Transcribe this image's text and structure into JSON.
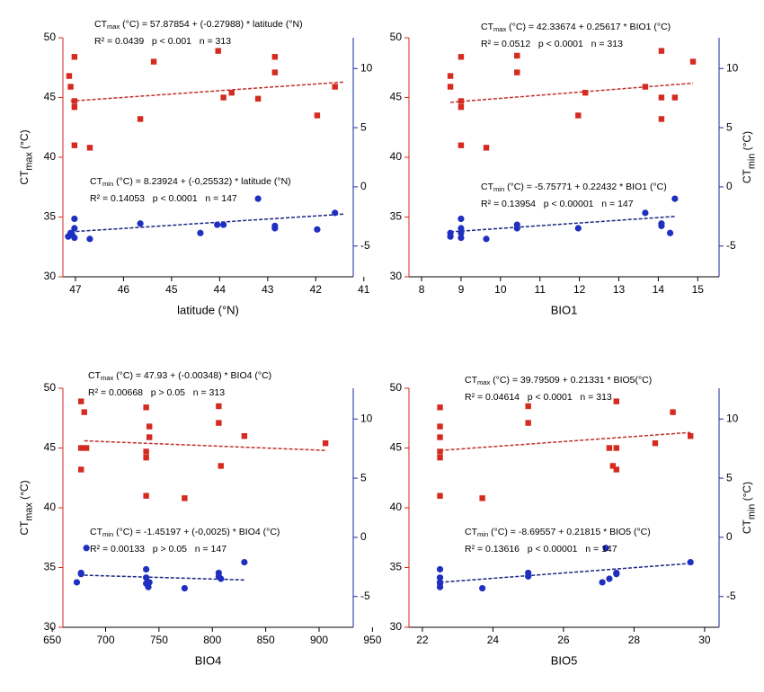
{
  "chart_data": [
    {
      "type": "scatter",
      "xlabel": "latitude (°N)",
      "ylabel": {
        "prefix": "CT",
        "sub": "max",
        "text": " (°C)"
      },
      "xlim": [
        47.26,
        41.22
      ],
      "xticks": [
        47,
        46,
        45,
        44,
        43,
        42,
        41
      ],
      "ylim": [
        30,
        50
      ],
      "yticks": [
        30,
        35,
        40,
        45,
        50
      ],
      "y2lim": [
        -7.6,
        12.6
      ],
      "y2ticks": [
        -5,
        0,
        5,
        10
      ],
      "series": [
        {
          "color": "#d42a1f",
          "marker": "square",
          "x": [
            47.13,
            47.1,
            47.02,
            47.02,
            47.02,
            47.02,
            46.7,
            45.65,
            45.37,
            44.03,
            43.92,
            43.75,
            43.2,
            42.85,
            42.85,
            41.97,
            41.6
          ],
          "values": [
            46.8,
            45.9,
            48.4,
            44.7,
            44.2,
            41.0,
            40.8,
            43.2,
            48.0,
            48.9,
            45.0,
            45.4,
            44.9,
            48.4,
            47.1,
            43.5,
            45.9
          ]
        },
        {
          "color": "#1f2fc0",
          "marker": "circle",
          "axis": "y2",
          "x": [
            47.15,
            47.1,
            47.07,
            47.02,
            47.02,
            47.02,
            46.7,
            45.65,
            44.4,
            44.05,
            43.92,
            43.2,
            42.85,
            42.85,
            41.97,
            41.6
          ],
          "values": [
            -4.2,
            -3.9,
            -4.0,
            -2.7,
            -3.5,
            -4.3,
            -4.4,
            -3.1,
            -3.9,
            -3.2,
            -3.2,
            -1.0,
            -3.3,
            -3.5,
            -3.6,
            -2.2
          ]
        }
      ],
      "fits": [
        {
          "color": "#c0302a",
          "x": [
            47.1,
            41.4
          ],
          "values": [
            44.7,
            46.3
          ]
        },
        {
          "color": "#1a2580",
          "axis": "y2",
          "x": [
            47.1,
            41.4
          ],
          "values": [
            -3.8,
            -2.3
          ]
        }
      ],
      "annotations": [
        {
          "prefix": "CT",
          "sub": "max",
          "text": " (°C) = 57.87854 + (-0.27988) * latitude (°N)",
          "stats": "R² = 0.0439   p < 0.001   n = 313"
        },
        {
          "prefix": "CT",
          "sub": "min",
          "text": " (°C) = 8.23924 + (-0,25532) * latitude (°N)",
          "stats": "R² = 0.14053   p < 0.0001   n = 147"
        }
      ]
    },
    {
      "type": "scatter",
      "xlabel": "BIO1",
      "y2label": {
        "prefix": "CT",
        "sub": "min",
        "text": " (°C)"
      },
      "xlim": [
        7.68,
        15.54
      ],
      "xticks": [
        8,
        9,
        10,
        11,
        12,
        13,
        14,
        15
      ],
      "ylim": [
        30,
        50
      ],
      "yticks": [
        30,
        35,
        40,
        45,
        50
      ],
      "y2lim": [
        -7.6,
        12.6
      ],
      "y2ticks": [
        -5,
        0,
        5,
        10
      ],
      "series": [
        {
          "color": "#d42a1f",
          "marker": "square",
          "x": [
            8.73,
            8.73,
            9.0,
            9.0,
            9.0,
            9.0,
            9.64,
            10.42,
            10.42,
            11.97,
            12.15,
            13.67,
            14.08,
            14.08,
            14.08,
            14.42,
            14.88
          ],
          "values": [
            46.8,
            45.9,
            48.4,
            44.7,
            44.2,
            41.0,
            40.8,
            48.5,
            47.1,
            43.5,
            45.4,
            45.9,
            48.9,
            45.0,
            43.2,
            45.0,
            48.0
          ]
        },
        {
          "color": "#1f2fc0",
          "marker": "circle",
          "axis": "y2",
          "x": [
            8.73,
            8.73,
            9.0,
            9.0,
            9.0,
            9.0,
            9.64,
            10.42,
            10.42,
            11.97,
            13.67,
            14.08,
            14.08,
            14.3,
            14.42
          ],
          "values": [
            -4.2,
            -3.9,
            -2.7,
            -3.5,
            -3.9,
            -4.3,
            -4.4,
            -3.2,
            -3.5,
            -3.5,
            -2.2,
            -3.1,
            -3.3,
            -3.9,
            -1.0
          ]
        }
      ],
      "fits": [
        {
          "color": "#c0302a",
          "x": [
            8.73,
            14.88
          ],
          "values": [
            44.6,
            46.2
          ]
        },
        {
          "color": "#1a2580",
          "axis": "y2",
          "x": [
            8.73,
            14.42
          ],
          "values": [
            -3.8,
            -2.5
          ]
        }
      ],
      "annotations": [
        {
          "prefix": "CT",
          "sub": "max",
          "text": " (°C) = 42.33674 + 0.25617 * BIO1 (°C)",
          "stats": "R² = 0.0512   p < 0.0001   n = 313"
        },
        {
          "prefix": "CT",
          "sub": "min",
          "text": " (°C) = -5.75771 + 0.22432 * BIO1 (°C)",
          "stats": "R² = 0.13954   p < 0.00001   n = 147"
        }
      ]
    },
    {
      "type": "scatter",
      "xlabel": "BIO4",
      "ylabel": {
        "prefix": "CT",
        "sub": "max",
        "text": " (°C)"
      },
      "xlim": [
        660,
        932
      ],
      "xticks": [
        650,
        700,
        750,
        800,
        850,
        900,
        950
      ],
      "ylim": [
        30,
        50
      ],
      "yticks": [
        30,
        35,
        40,
        45,
        50
      ],
      "y2lim": [
        -7.6,
        12.6
      ],
      "y2ticks": [
        -5,
        0,
        5,
        10
      ],
      "series": [
        {
          "color": "#d42a1f",
          "marker": "square",
          "x": [
            677,
            680,
            677,
            682,
            677,
            738,
            741,
            741,
            738,
            738,
            738,
            774,
            806,
            806,
            808,
            830,
            906
          ],
          "values": [
            48.9,
            48.0,
            45.0,
            45.0,
            43.2,
            48.4,
            46.8,
            45.9,
            44.7,
            44.2,
            41.0,
            40.8,
            48.5,
            47.1,
            43.5,
            46.0,
            45.4
          ]
        },
        {
          "color": "#1f2fc0",
          "marker": "circle",
          "axis": "y2",
          "x": [
            673,
            677,
            677,
            682,
            738,
            738,
            738,
            741,
            740,
            774,
            806,
            806,
            808,
            830
          ],
          "values": [
            -3.8,
            -3.0,
            -3.1,
            -0.9,
            -2.7,
            -3.4,
            -3.9,
            -3.8,
            -4.2,
            -4.3,
            -3.0,
            -3.3,
            -3.5,
            -2.1
          ]
        }
      ],
      "fits": [
        {
          "color": "#c0302a",
          "x": [
            680,
            906
          ],
          "values": [
            45.6,
            44.8
          ]
        },
        {
          "color": "#1a2580",
          "axis": "y2",
          "x": [
            680,
            830
          ],
          "values": [
            -3.2,
            -3.6
          ]
        }
      ],
      "annotations": [
        {
          "prefix": "CT",
          "sub": "max",
          "text": " (°C) = 47.93 + (-0.00348) * BIO4 (°C)",
          "stats": "R² = 0.00668   p > 0.05   n = 313"
        },
        {
          "prefix": "CT",
          "sub": "min",
          "text": " (°C) = -1.45197 + (-0,0025) * BIO4 (°C)",
          "stats": "R² = 0.00133   p > 0.05   n = 147"
        }
      ]
    },
    {
      "type": "scatter",
      "xlabel": "BIO5",
      "y2label": {
        "prefix": "CT",
        "sub": "min",
        "text": " (°C)"
      },
      "xlim": [
        21.62,
        30.41
      ],
      "xticks": [
        22,
        24,
        26,
        28,
        30
      ],
      "ylim": [
        30,
        50
      ],
      "yticks": [
        30,
        35,
        40,
        45,
        50
      ],
      "y2lim": [
        -7.6,
        12.6
      ],
      "y2ticks": [
        -5,
        0,
        5,
        10
      ],
      "series": [
        {
          "color": "#d42a1f",
          "marker": "square",
          "x": [
            22.5,
            22.5,
            22.5,
            22.5,
            22.5,
            22.5,
            23.7,
            25.0,
            25.0,
            27.3,
            27.4,
            27.5,
            27.5,
            27.5,
            28.6,
            29.1,
            29.6
          ],
          "values": [
            48.4,
            46.8,
            45.9,
            44.7,
            44.2,
            41.0,
            40.8,
            48.5,
            47.1,
            45.0,
            43.5,
            45.0,
            43.2,
            48.9,
            45.4,
            48.0,
            46.0
          ]
        },
        {
          "color": "#1f2fc0",
          "marker": "circle",
          "axis": "y2",
          "x": [
            22.5,
            22.5,
            22.5,
            22.5,
            22.5,
            23.7,
            25.0,
            25.0,
            27.1,
            27.3,
            27.2,
            27.5,
            27.5,
            29.6
          ],
          "values": [
            -2.7,
            -3.4,
            -3.8,
            -3.9,
            -4.2,
            -4.3,
            -3.0,
            -3.3,
            -3.8,
            -3.5,
            -0.9,
            -3.0,
            -3.1,
            -2.1
          ]
        }
      ],
      "fits": [
        {
          "color": "#c0302a",
          "x": [
            22.5,
            29.6
          ],
          "values": [
            44.8,
            46.3
          ]
        },
        {
          "color": "#1a2580",
          "axis": "y2",
          "x": [
            22.5,
            29.6
          ],
          "values": [
            -3.8,
            -2.2
          ]
        }
      ],
      "annotations": [
        {
          "prefix": "CT",
          "sub": "max",
          "text": " (°C) = 39.79509 + 0.21331 * BIO5(°C)",
          "stats": "R² = 0.04614   p < 0.0001   n = 313"
        },
        {
          "prefix": "CT",
          "sub": "min",
          "text": " (°C) = -8.69557 + 0.21815 * BIO5 (°C)",
          "stats": "R² = 0.13616   p < 0.00001   n = 147"
        }
      ]
    }
  ]
}
